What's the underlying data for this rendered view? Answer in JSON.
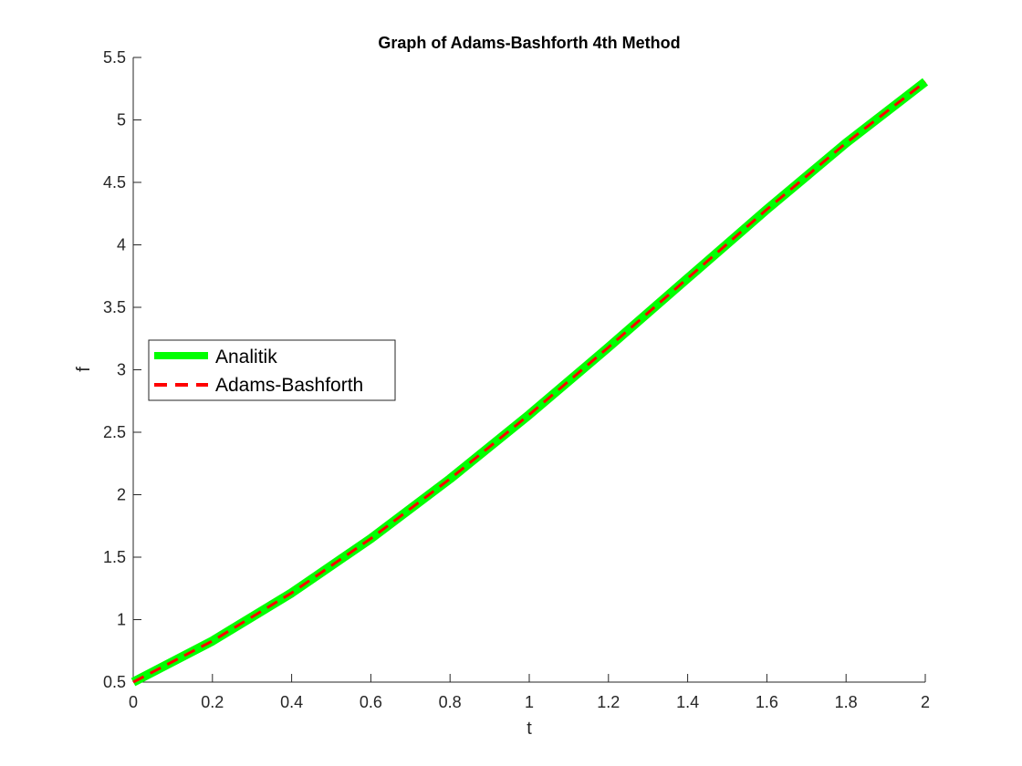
{
  "chart_data": {
    "type": "line",
    "title": "Graph of Adams-Bashforth 4th Method",
    "xlabel": "t",
    "ylabel": "f",
    "xlim": [
      0,
      2
    ],
    "ylim": [
      0.5,
      5.5
    ],
    "xticks": [
      "0",
      "0.2",
      "0.4",
      "0.6",
      "0.8",
      "1",
      "1.2",
      "1.4",
      "1.6",
      "1.8",
      "2"
    ],
    "yticks": [
      "0.5",
      "1",
      "1.5",
      "2",
      "2.5",
      "3",
      "3.5",
      "4",
      "4.5",
      "5",
      "5.5"
    ],
    "xtick_values": [
      0,
      0.2,
      0.4,
      0.6,
      0.8,
      1.0,
      1.2,
      1.4,
      1.6,
      1.8,
      2.0
    ],
    "ytick_values": [
      0.5,
      1.0,
      1.5,
      2.0,
      2.5,
      3.0,
      3.5,
      4.0,
      4.5,
      5.0,
      5.5
    ],
    "grid": false,
    "legend_position": "middle-left",
    "x": [
      0,
      0.2,
      0.4,
      0.6,
      0.8,
      1.0,
      1.2,
      1.4,
      1.6,
      1.8,
      2.0
    ],
    "series": [
      {
        "name": "Analitik",
        "color": "#00ff00",
        "style": "solid",
        "values": [
          0.5,
          0.8293,
          1.2141,
          1.6489,
          2.1272,
          2.6409,
          3.1799,
          3.7324,
          4.2835,
          4.8152,
          5.3055
        ]
      },
      {
        "name": "Adams-Bashforth",
        "color": "#ff0000",
        "style": "dashed",
        "values": [
          0.5,
          0.8293,
          1.2141,
          1.6489,
          2.1272,
          2.6409,
          3.1799,
          3.7324,
          4.2835,
          4.8152,
          5.3055
        ]
      }
    ]
  }
}
